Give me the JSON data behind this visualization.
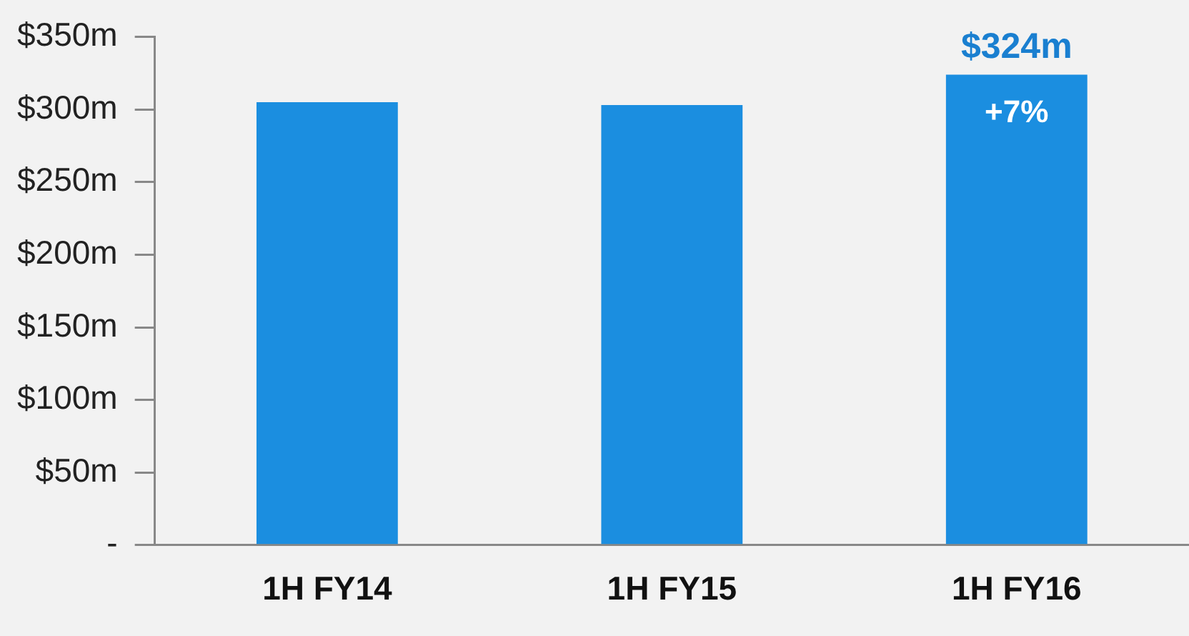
{
  "chart_data": {
    "type": "bar",
    "categories": [
      "1H FY14",
      "1H FY15",
      "1H FY16"
    ],
    "values": [
      305,
      303,
      324
    ],
    "color": "#1b8ee0",
    "value_labels": [
      null,
      null,
      "$324m"
    ],
    "annotations": [
      "+7%"
    ],
    "ylim": [
      0,
      350
    ],
    "yticks": [
      {
        "value": 0,
        "label": "-"
      },
      {
        "value": 50,
        "label": "$50m"
      },
      {
        "value": 100,
        "label": "$100m"
      },
      {
        "value": 150,
        "label": "$150m"
      },
      {
        "value": 200,
        "label": "$200m"
      },
      {
        "value": 250,
        "label": "$250m"
      },
      {
        "value": 300,
        "label": "$300m"
      },
      {
        "value": 350,
        "label": "$350m"
      }
    ],
    "grid": false,
    "legend": false
  }
}
